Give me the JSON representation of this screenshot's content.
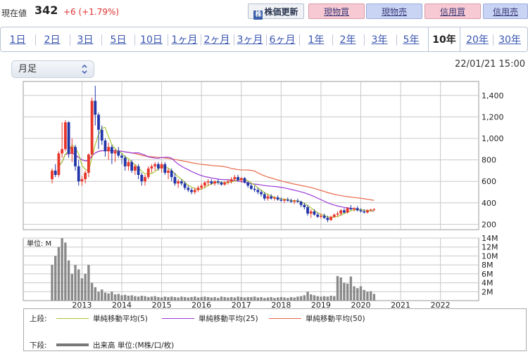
{
  "header": {
    "price_label": "現在値",
    "price_value": "342",
    "price_change": "+6 (+1.79%)",
    "buttons": {
      "refresh": "株価更新",
      "refresh_icon": "株",
      "spot_buy": "現物買",
      "spot_sell": "現物売",
      "margin_buy": "信用買",
      "margin_sell": "信用売"
    }
  },
  "tabs": [
    "1日",
    "2日",
    "3日",
    "5日",
    "10日",
    "1ヶ月",
    "2ヶ月",
    "3ヶ月",
    "6ヶ月",
    "1年",
    "2年",
    "3年",
    "5年",
    "10年",
    "20年",
    "30年"
  ],
  "active_tab": "10年",
  "period_select": {
    "value": "月足",
    "icon": "chevron-updown-icon"
  },
  "datetime": "22/01/21 15:00",
  "colors": {
    "up": "#e8362a",
    "down": "#2236a8",
    "ma5": "#a8c832",
    "ma25": "#9c3ad8",
    "ma50": "#e86a4a",
    "volume": "#8a8a8a",
    "grid": "#c8c8c8"
  },
  "chart_data": {
    "type": "candlestick",
    "period": "monthly",
    "xlabels": [
      "2013",
      "2014",
      "2015",
      "2016",
      "2017",
      "2018",
      "2019",
      "2020",
      "2021",
      "2022"
    ],
    "yticks_price": [
      200,
      400,
      600,
      800,
      1000,
      1200,
      1400
    ],
    "ylim_price": [
      150,
      1530
    ],
    "yticks_volume": [
      "2M",
      "4M",
      "6M",
      "8M",
      "10M",
      "12M",
      "14M"
    ],
    "volume_label": "単位: M",
    "ylim_volume_M": [
      0,
      14
    ],
    "start": "2012-04",
    "candles": [
      [
        620,
        720,
        580,
        700
      ],
      [
        700,
        760,
        640,
        660
      ],
      [
        660,
        880,
        640,
        860
      ],
      [
        860,
        1150,
        820,
        900
      ],
      [
        900,
        1170,
        880,
        1150
      ],
      [
        1150,
        1160,
        820,
        860
      ],
      [
        860,
        1000,
        780,
        920
      ],
      [
        920,
        940,
        700,
        740
      ],
      [
        740,
        800,
        560,
        600
      ],
      [
        600,
        650,
        560,
        620
      ],
      [
        620,
        700,
        580,
        680
      ],
      [
        680,
        860,
        640,
        850
      ],
      [
        850,
        1380,
        820,
        1350
      ],
      [
        1350,
        1490,
        1120,
        1220
      ],
      [
        1220,
        1240,
        900,
        1080
      ],
      [
        1080,
        1120,
        940,
        980
      ],
      [
        980,
        1000,
        830,
        880
      ],
      [
        880,
        960,
        800,
        920
      ],
      [
        920,
        940,
        760,
        860
      ],
      [
        860,
        900,
        780,
        880
      ],
      [
        880,
        920,
        820,
        840
      ],
      [
        840,
        860,
        760,
        820
      ],
      [
        820,
        840,
        700,
        740
      ],
      [
        740,
        800,
        700,
        780
      ],
      [
        780,
        800,
        680,
        700
      ],
      [
        700,
        760,
        660,
        740
      ],
      [
        740,
        760,
        620,
        660
      ],
      [
        660,
        680,
        560,
        600
      ],
      [
        600,
        660,
        560,
        640
      ],
      [
        640,
        740,
        620,
        720
      ],
      [
        720,
        760,
        680,
        740
      ],
      [
        740,
        780,
        700,
        760
      ],
      [
        760,
        780,
        700,
        720
      ],
      [
        720,
        780,
        680,
        760
      ],
      [
        760,
        780,
        660,
        680
      ],
      [
        680,
        720,
        620,
        700
      ],
      [
        700,
        720,
        600,
        640
      ],
      [
        640,
        680,
        560,
        580
      ],
      [
        580,
        620,
        540,
        600
      ],
      [
        600,
        620,
        560,
        580
      ],
      [
        580,
        600,
        520,
        540
      ],
      [
        540,
        560,
        500,
        520
      ],
      [
        520,
        540,
        480,
        500
      ],
      [
        500,
        540,
        480,
        520
      ],
      [
        520,
        560,
        500,
        540
      ],
      [
        540,
        580,
        520,
        560
      ],
      [
        560,
        600,
        540,
        590
      ],
      [
        590,
        620,
        560,
        600
      ],
      [
        600,
        620,
        570,
        580
      ],
      [
        580,
        610,
        560,
        600
      ],
      [
        600,
        620,
        570,
        590
      ],
      [
        590,
        600,
        560,
        570
      ],
      [
        570,
        600,
        560,
        590
      ],
      [
        590,
        620,
        570,
        600
      ],
      [
        600,
        640,
        580,
        620
      ],
      [
        620,
        660,
        600,
        640
      ],
      [
        640,
        660,
        600,
        610
      ],
      [
        610,
        640,
        590,
        630
      ],
      [
        630,
        640,
        580,
        590
      ],
      [
        590,
        600,
        540,
        560
      ],
      [
        560,
        580,
        520,
        530
      ],
      [
        530,
        560,
        500,
        520
      ],
      [
        520,
        540,
        480,
        500
      ],
      [
        500,
        520,
        460,
        480
      ],
      [
        480,
        500,
        420,
        440
      ],
      [
        440,
        480,
        420,
        460
      ],
      [
        460,
        480,
        430,
        440
      ],
      [
        440,
        460,
        420,
        450
      ],
      [
        450,
        470,
        420,
        430
      ],
      [
        430,
        450,
        410,
        420
      ],
      [
        420,
        440,
        400,
        430
      ],
      [
        430,
        450,
        410,
        420
      ],
      [
        420,
        440,
        400,
        410
      ],
      [
        410,
        430,
        390,
        420
      ],
      [
        420,
        440,
        400,
        410
      ],
      [
        410,
        420,
        360,
        380
      ],
      [
        380,
        400,
        340,
        360
      ],
      [
        360,
        380,
        280,
        300
      ],
      [
        300,
        340,
        260,
        320
      ],
      [
        320,
        340,
        280,
        290
      ],
      [
        290,
        310,
        260,
        270
      ],
      [
        270,
        300,
        250,
        280
      ],
      [
        280,
        300,
        250,
        260
      ],
      [
        260,
        280,
        220,
        240
      ],
      [
        240,
        280,
        230,
        270
      ],
      [
        270,
        300,
        260,
        290
      ],
      [
        290,
        320,
        270,
        300
      ],
      [
        300,
        340,
        280,
        330
      ],
      [
        330,
        350,
        300,
        310
      ],
      [
        310,
        360,
        300,
        350
      ],
      [
        350,
        380,
        330,
        340
      ],
      [
        340,
        360,
        320,
        350
      ],
      [
        350,
        370,
        320,
        330
      ],
      [
        330,
        350,
        310,
        320
      ],
      [
        320,
        340,
        300,
        310
      ],
      [
        310,
        340,
        300,
        330
      ],
      [
        330,
        345,
        320,
        336
      ],
      [
        336,
        350,
        325,
        342
      ]
    ],
    "volume_M": [
      8,
      10,
      12,
      14,
      13,
      9,
      6,
      8,
      7,
      5,
      6,
      8,
      4,
      3,
      2,
      2.5,
      1.8,
      1.6,
      2,
      1.4,
      1.5,
      1.2,
      1.3,
      1.1,
      1.2,
      1,
      0.9,
      1.1,
      1,
      0.8,
      0.9,
      1,
      0.8,
      0.7,
      0.9,
      0.8,
      0.9,
      0.8,
      0.7,
      0.9,
      0.8,
      0.7,
      0.8,
      0.9,
      0.7,
      0.8,
      0.9,
      0.8,
      0.7,
      0.8,
      0.6,
      0.9,
      0.8,
      0.7,
      0.8,
      0.7,
      0.9,
      0.8,
      0.7,
      0.8,
      0.8,
      0.9,
      0.7,
      0.8,
      0.6,
      0.7,
      0.8,
      0.6,
      0.7,
      0.8,
      0.7,
      0.6,
      0.8,
      0.7,
      0.9,
      1,
      1.2,
      2,
      1.4,
      1.2,
      1,
      0.9,
      1,
      0.9,
      1.1,
      1,
      5.5,
      5.2,
      4,
      3.8,
      5.4,
      3.2,
      2.8,
      3.2,
      2.4,
      2,
      2.1,
      1.5
    ],
    "legend": {
      "upper_label": "上段:",
      "ma5": "単純移動平均(5)",
      "ma25": "単純移動平均(25)",
      "ma50": "単純移動平均(50)",
      "lower_label": "下段:",
      "volume": "出来高 単位:(M株/口/枚)"
    }
  }
}
